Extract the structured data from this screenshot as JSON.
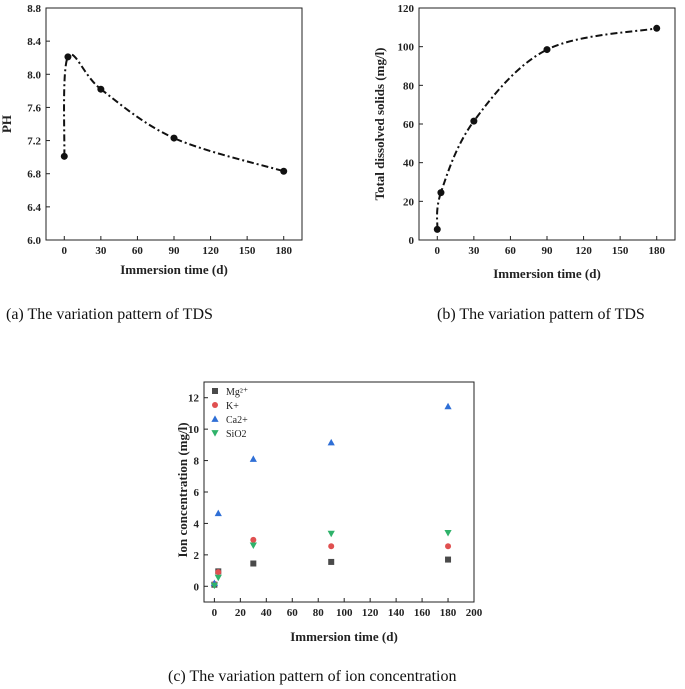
{
  "chart_data": [
    {
      "id": "a",
      "type": "line",
      "title": "",
      "xlabel": "Immersion time (d)",
      "ylabel": "PH",
      "xlim": [
        -15,
        195
      ],
      "ylim": [
        6.0,
        8.8
      ],
      "xticks": [
        0,
        30,
        60,
        90,
        120,
        150,
        180
      ],
      "yticks": [
        6.0,
        6.4,
        6.8,
        7.2,
        7.6,
        8.0,
        8.4,
        8.8
      ],
      "ytick_labels": [
        "6.0",
        "6.4",
        "6.8",
        "7.2",
        "7.6",
        "8.0",
        "8.4",
        "8.8"
      ],
      "x": [
        0,
        3,
        30,
        90,
        180
      ],
      "values": [
        7.01,
        8.21,
        7.82,
        7.23,
        6.83
      ],
      "caption": "(a)   The variation pattern of TDS"
    },
    {
      "id": "b",
      "type": "line",
      "title": "",
      "xlabel": "Immersion time (d)",
      "ylabel": "Total dissolved solids (mg/l)",
      "xlim": [
        -15,
        195
      ],
      "ylim": [
        0,
        120
      ],
      "xticks": [
        0,
        30,
        60,
        90,
        120,
        150,
        180
      ],
      "yticks": [
        0,
        20,
        40,
        60,
        80,
        100,
        120
      ],
      "x": [
        0,
        3,
        30,
        90,
        180
      ],
      "values": [
        5.5,
        24.5,
        61.5,
        98.5,
        109.5
      ],
      "caption": "(b) The variation pattern of TDS"
    },
    {
      "id": "c",
      "type": "scatter",
      "title": "",
      "xlabel": "Immersion time (d)",
      "ylabel": "Ion concentration (mg/l)",
      "xlim": [
        -8,
        200
      ],
      "ylim": [
        -1,
        13
      ],
      "xticks": [
        0,
        20,
        40,
        60,
        80,
        100,
        120,
        140,
        160,
        180,
        200
      ],
      "yticks": [
        0,
        2,
        4,
        6,
        8,
        10,
        12
      ],
      "legend_position": "top-left",
      "series": [
        {
          "name": "Mg²⁺",
          "marker": "square",
          "color": "#4a4a4a",
          "x": [
            0,
            3,
            30,
            90,
            180
          ],
          "values": [
            0.1,
            0.95,
            1.45,
            1.55,
            1.7
          ]
        },
        {
          "name": "K+",
          "marker": "circle",
          "color": "#e05050",
          "x": [
            0,
            3,
            30,
            90,
            180
          ],
          "values": [
            0.15,
            0.9,
            2.95,
            2.55,
            2.55
          ]
        },
        {
          "name": "Ca2+",
          "marker": "triangle-up",
          "color": "#2f6fd6",
          "x": [
            0,
            3,
            30,
            90,
            180
          ],
          "values": [
            0.2,
            4.65,
            8.1,
            9.15,
            11.45
          ]
        },
        {
          "name": "SiO2",
          "marker": "triangle-down",
          "color": "#2fb26a",
          "x": [
            0,
            3,
            30,
            90,
            180
          ],
          "values": [
            0.05,
            0.55,
            2.6,
            3.35,
            3.4
          ]
        }
      ],
      "caption": "(c)    The variation pattern of ion concentration"
    }
  ]
}
